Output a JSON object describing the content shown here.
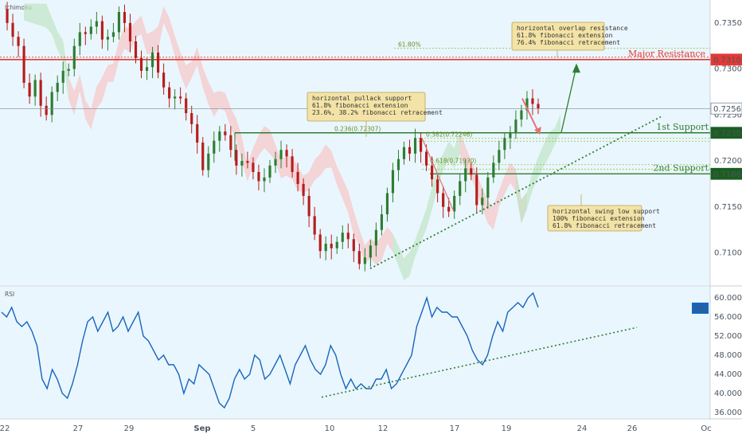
{
  "colors": {
    "background": "#eaf6fd",
    "candle_up": "#2e7d32",
    "candle_down": "#b71c1c",
    "rsi_line": "#1565c0",
    "resistance": "#e53935",
    "support": "#2e7d32",
    "trendline": "#2e7d32",
    "cloud_bull": "#bfe6c4",
    "cloud_bear": "#f7c6c6",
    "note_bg": "#f3e3a6",
    "note_border": "#b8a25a"
  },
  "chart_data": [
    {
      "type": "candlestick",
      "indicator_label": "Ichimoku",
      "ylim": [
        0.7065,
        0.7375
      ],
      "y_ticks": [
        "0.73500",
        "0.73000",
        "0.72500",
        "0.72000",
        "0.71500",
        "0.71000"
      ],
      "x_tick_labels": [
        "22",
        "27",
        "29",
        "Sep",
        "5",
        "10",
        "12",
        "17",
        "19",
        "24",
        "26",
        "Oc"
      ],
      "price_path": [
        0.7365,
        0.735,
        0.7335,
        0.7325,
        0.7285,
        0.727,
        0.7288,
        0.726,
        0.725,
        0.7275,
        0.7285,
        0.7298,
        0.73,
        0.7325,
        0.734,
        0.7338,
        0.7346,
        0.7352,
        0.7332,
        0.7335,
        0.734,
        0.7362,
        0.735,
        0.733,
        0.7312,
        0.7298,
        0.7302,
        0.7318,
        0.7296,
        0.728,
        0.7268,
        0.727,
        0.7268,
        0.7252,
        0.724,
        0.722,
        0.719,
        0.7208,
        0.7222,
        0.7232,
        0.7228,
        0.7212,
        0.7195,
        0.72,
        0.7198,
        0.7188,
        0.7178,
        0.7182,
        0.7195,
        0.7202,
        0.7212,
        0.7205,
        0.7188,
        0.7175,
        0.7162,
        0.714,
        0.712,
        0.7102,
        0.711,
        0.7105,
        0.7112,
        0.7122,
        0.7115,
        0.7102,
        0.7088,
        0.7095,
        0.7108,
        0.7125,
        0.7142,
        0.7165,
        0.719,
        0.7202,
        0.7215,
        0.7208,
        0.7225,
        0.721,
        0.7195,
        0.718,
        0.7165,
        0.715,
        0.7145,
        0.7162,
        0.7178,
        0.7192,
        0.7185,
        0.7152,
        0.716,
        0.7182,
        0.7198,
        0.7212,
        0.7225,
        0.723,
        0.7245,
        0.7255,
        0.7268,
        0.7262,
        0.7257
      ],
      "price_current": "0.72567",
      "levels": [
        {
          "name": "Major Resistance",
          "value": 0.73102,
          "label": "0.73102"
        },
        {
          "name": "1st Support",
          "value": 0.72306,
          "label": "0.72306"
        },
        {
          "name": "2nd Support",
          "value": 0.7186,
          "label": "0.71860"
        }
      ],
      "fib_labels": [
        "61.80%",
        "0.236(0.72307)",
        "0.382(0.72246)",
        "0.618(0.71930)"
      ],
      "annotations": [
        {
          "lines": [
            "horizontal overlap resistance",
            "61.8% fibonacci extension",
            "76.4% fibonacci retracement"
          ]
        },
        {
          "lines": [
            "horizontal pullack support",
            "61.8% fibonacci extension",
            "23.6%, 38.2% fibonacci retracement"
          ]
        },
        {
          "lines": [
            "horizontal swing low support",
            "100% fibonacci extension",
            "61.8% fibonacci retracement"
          ]
        }
      ]
    },
    {
      "type": "line",
      "name": "RSI",
      "ylim": [
        35,
        62
      ],
      "y_ticks": [
        "60.0000",
        "56.0000",
        "52.0000",
        "48.0000",
        "44.0000",
        "40.0000",
        "36.0000"
      ],
      "current_label": "RSI",
      "values": [
        57,
        56,
        58,
        55,
        54,
        55,
        53,
        50,
        43,
        41,
        45,
        43,
        40,
        39,
        42,
        46,
        51,
        55,
        56,
        53,
        55,
        57,
        53,
        54,
        56,
        53,
        55,
        57,
        52,
        51,
        49,
        47,
        48,
        46,
        46,
        44,
        40,
        43,
        42,
        46,
        45,
        44,
        41,
        38,
        37,
        39,
        43,
        45,
        43,
        44,
        48,
        47,
        43,
        44,
        46,
        48,
        45,
        42,
        46,
        48,
        50,
        47,
        45,
        44,
        46,
        50,
        48,
        44,
        41,
        43,
        41,
        42,
        41,
        41,
        43,
        43,
        45,
        41,
        42,
        44,
        46,
        48,
        54,
        57,
        60,
        56,
        58,
        57,
        57,
        56,
        56,
        54,
        52,
        49,
        47,
        46,
        48,
        52,
        55,
        53,
        57,
        58,
        59,
        58,
        60,
        61,
        58
      ]
    }
  ]
}
